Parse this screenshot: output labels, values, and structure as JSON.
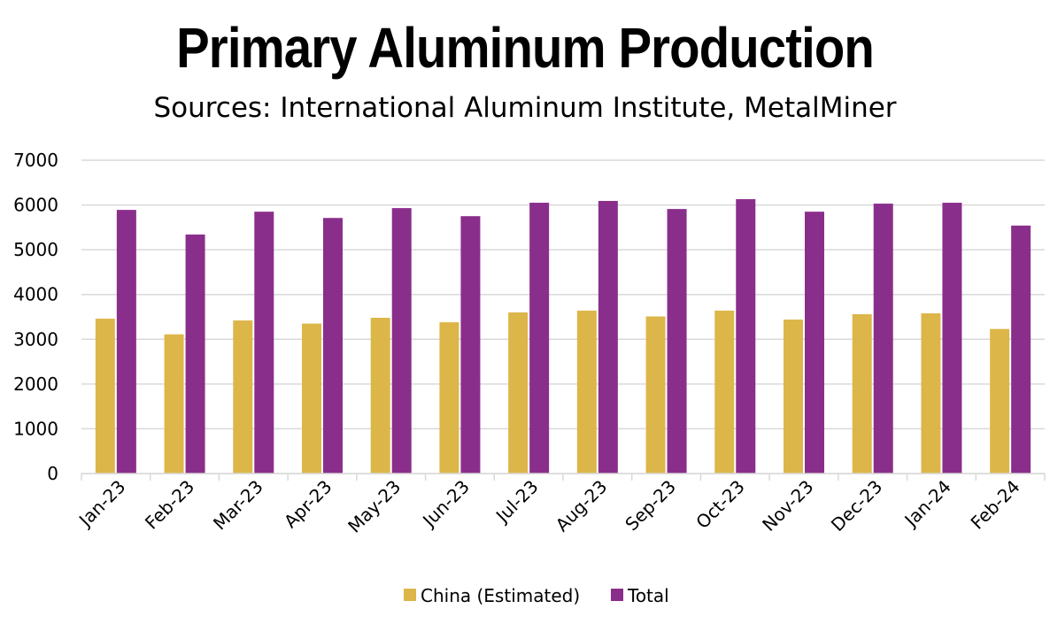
{
  "chart_data": {
    "type": "bar",
    "title": "Primary Aluminum Production",
    "subtitle": "Sources: International Aluminum Institute, MetalMiner",
    "categories": [
      "Jan-23",
      "Feb-23",
      "Mar-23",
      "Apr-23",
      "May-23",
      "Jun-23",
      "Jul-23",
      "Aug-23",
      "Sep-23",
      "Oct-23",
      "Nov-23",
      "Dec-23",
      "Jan-24",
      "Feb-24"
    ],
    "series": [
      {
        "name": "China (Estimated)",
        "color": "#DDB64A",
        "values": [
          3460,
          3110,
          3420,
          3350,
          3480,
          3380,
          3600,
          3640,
          3510,
          3640,
          3440,
          3560,
          3580,
          3230
        ]
      },
      {
        "name": "Total",
        "color": "#8A2E8C",
        "values": [
          5890,
          5340,
          5850,
          5710,
          5930,
          5750,
          6050,
          6090,
          5910,
          6130,
          5850,
          6030,
          6050,
          5540
        ]
      }
    ],
    "ylim": [
      0,
      7000
    ],
    "yticks": [
      0,
      1000,
      2000,
      3000,
      4000,
      5000,
      6000,
      7000
    ],
    "grid": true,
    "legend": "bottom",
    "xlabel": "",
    "ylabel": ""
  }
}
